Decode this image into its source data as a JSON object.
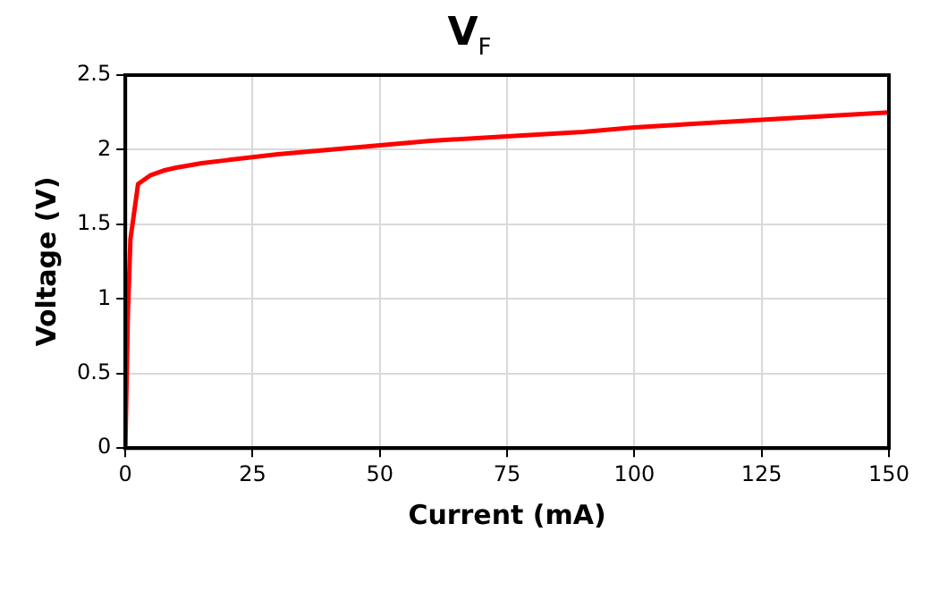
{
  "chart_data": {
    "type": "line",
    "title": "V$_{F}$",
    "xlabel": "Current (mA)",
    "ylabel": "Voltage (V)",
    "x": [
      0,
      0.5,
      1,
      2.5,
      5,
      7.5,
      10,
      15,
      20,
      25,
      30,
      40,
      50,
      60,
      75,
      90,
      100,
      110,
      125,
      140,
      150
    ],
    "series": [
      {
        "color": "#ff0000",
        "values": [
          0,
          0.9,
          1.4,
          1.77,
          1.83,
          1.86,
          1.88,
          1.91,
          1.93,
          1.95,
          1.97,
          2.0,
          2.03,
          2.06,
          2.09,
          2.12,
          2.15,
          2.17,
          2.2,
          2.23,
          2.25
        ]
      }
    ],
    "xlim": [
      0,
      150
    ],
    "xticks": [
      0,
      25,
      50,
      75,
      100,
      125,
      150
    ],
    "ylim": [
      0,
      2.5
    ],
    "yticks": [
      0,
      0.5,
      1,
      1.5,
      2,
      2.5
    ],
    "grid": true,
    "legend": false,
    "marker": "none",
    "line_style": "solid"
  }
}
